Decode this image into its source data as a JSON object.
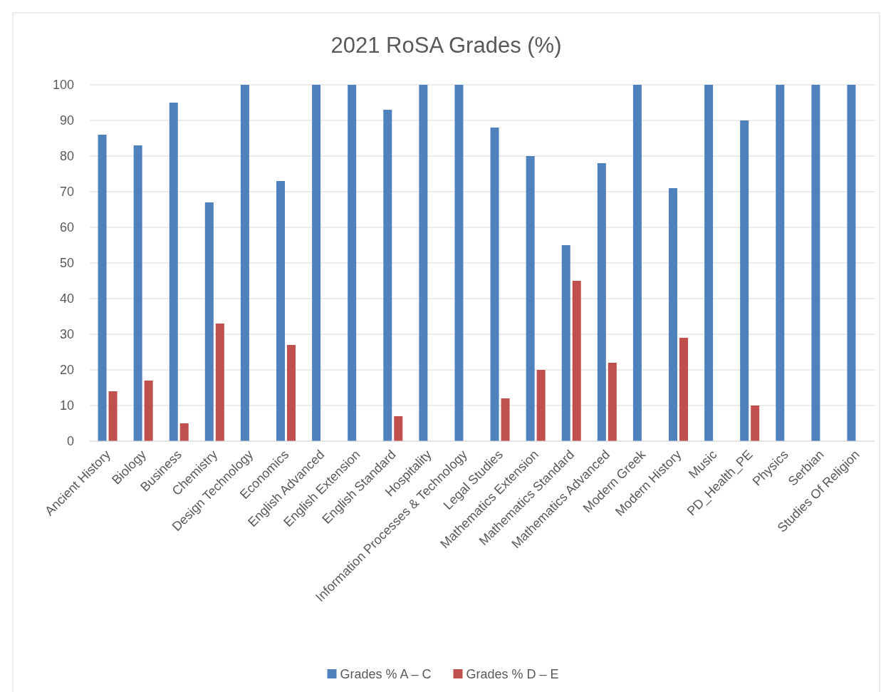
{
  "chart_data": {
    "type": "bar",
    "title": "2021 RoSA Grades (%)",
    "categories": [
      "Ancient History",
      "Biology",
      "Business",
      "Chemistry",
      "Design Technology",
      "Economics",
      "English Advanced",
      "English Extension",
      "English Standard",
      "Hospitality",
      "Information Processes & Technology",
      "Legal Studies",
      "Mathematics Extension",
      "Mathematics Standard",
      "Mathematics Advanced",
      "Modern Greek",
      "Modern History",
      "Music",
      "PD_Health_PE",
      "Physics",
      "Serbian",
      "Studies Of Religion"
    ],
    "series": [
      {
        "name": "Grades % A – C",
        "color": "#4f81bd",
        "values": [
          86,
          83,
          95,
          67,
          100,
          73,
          100,
          100,
          93,
          100,
          100,
          88,
          80,
          55,
          78,
          100,
          71,
          100,
          90,
          100,
          100,
          100
        ]
      },
      {
        "name": "Grades % D – E",
        "color": "#c0504d",
        "values": [
          14,
          17,
          5,
          33,
          0,
          27,
          0,
          0,
          7,
          0,
          0,
          12,
          20,
          45,
          22,
          0,
          29,
          0,
          10,
          0,
          0,
          0
        ]
      }
    ],
    "ylim": [
      0,
      100
    ],
    "yticks": [
      0,
      10,
      20,
      30,
      40,
      50,
      60,
      70,
      80,
      90,
      100
    ],
    "grid": "y",
    "legend": "bottom"
  }
}
